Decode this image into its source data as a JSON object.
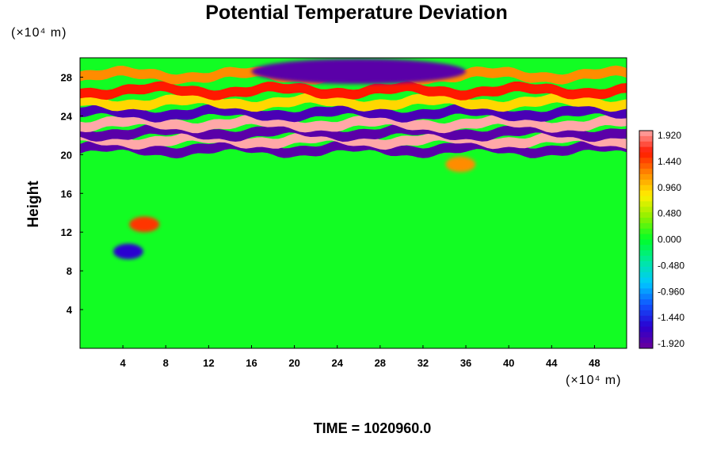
{
  "chart_data": {
    "type": "heatmap",
    "title": "Potential Temperature Deviation",
    "ylabel": "Height",
    "y_unit": "(×10⁴ m)",
    "x_unit": "(×10⁴ m)",
    "x_ticks": [
      4,
      8,
      12,
      16,
      20,
      24,
      28,
      32,
      36,
      40,
      44,
      48
    ],
    "y_ticks": [
      4,
      8,
      12,
      16,
      20,
      24,
      28
    ],
    "xlim": [
      0,
      51
    ],
    "ylim": [
      0,
      30
    ],
    "colorbar": {
      "labels": [
        "1.920",
        "1.440",
        "0.960",
        "0.480",
        "0.000",
        "-0.480",
        "-0.960",
        "-1.440",
        "-1.920"
      ],
      "range": [
        -2.0,
        2.0
      ]
    },
    "bands": [
      {
        "y_center": 20.6,
        "value": -1.9
      },
      {
        "y_center": 21.5,
        "value": 2.0
      },
      {
        "y_center": 22.3,
        "value": -1.9
      },
      {
        "y_center": 23.2,
        "value": 2.0
      },
      {
        "y_center": 24.3,
        "value": -1.8
      },
      {
        "y_center": 25.4,
        "value": 0.9
      },
      {
        "y_center": 26.6,
        "value": 1.6
      },
      {
        "y_center": 28.2,
        "value": 1.2
      }
    ],
    "features": [
      {
        "x": 26,
        "y": 28.6,
        "value": -1.9,
        "description": "cold anomaly"
      },
      {
        "x": 6,
        "y": 12.8,
        "value": 1.5
      },
      {
        "x": 4.5,
        "y": 10.0,
        "value": -1.6
      },
      {
        "x": 35.5,
        "y": 19.0,
        "value": 1.2
      }
    ],
    "background_value": 0.05
  },
  "footer": {
    "time_label": "TIME = 1020960.0"
  }
}
